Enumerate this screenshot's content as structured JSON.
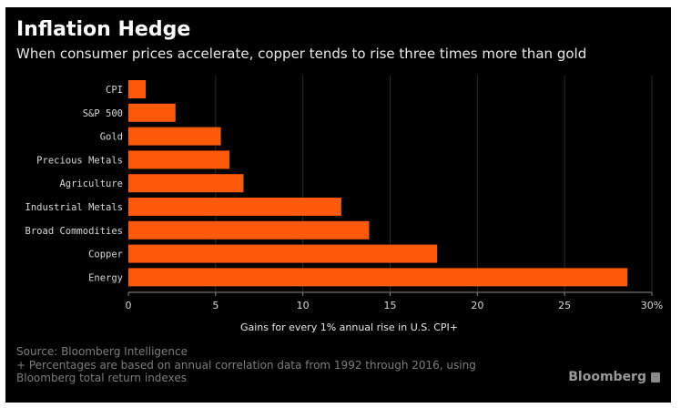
{
  "header": {
    "title": "Inflation Hedge",
    "subtitle": "When consumer prices accelerate, copper tends to rise three times more than gold"
  },
  "chart_data": {
    "type": "bar",
    "orientation": "horizontal",
    "categories": [
      "CPI",
      "S&P 500",
      "Gold",
      "Precious Metals",
      "Agriculture",
      "Industrial Metals",
      "Broad Commodities",
      "Copper",
      "Energy"
    ],
    "values": [
      1,
      2.7,
      5.3,
      5.8,
      6.6,
      12.2,
      13.8,
      17.7,
      28.6
    ],
    "xlabel": "Gains for every 1% annual rise in U.S. CPI+",
    "ylabel": "",
    "xlim": [
      0,
      30
    ],
    "xticks": [
      "0",
      "5",
      "10",
      "15",
      "20",
      "25",
      "30%"
    ],
    "grid": true,
    "bar_color": "#ff5a0a"
  },
  "footer": {
    "source": "Source: Bloomberg Intelligence",
    "note_line1": "+ Percentages are based on annual correlation data from 1992 through 2016, using",
    "note_line2": "Bloomberg total return indexes"
  },
  "brand": {
    "name": "Bloomberg",
    "icon": "bloomberg-logo-icon"
  }
}
